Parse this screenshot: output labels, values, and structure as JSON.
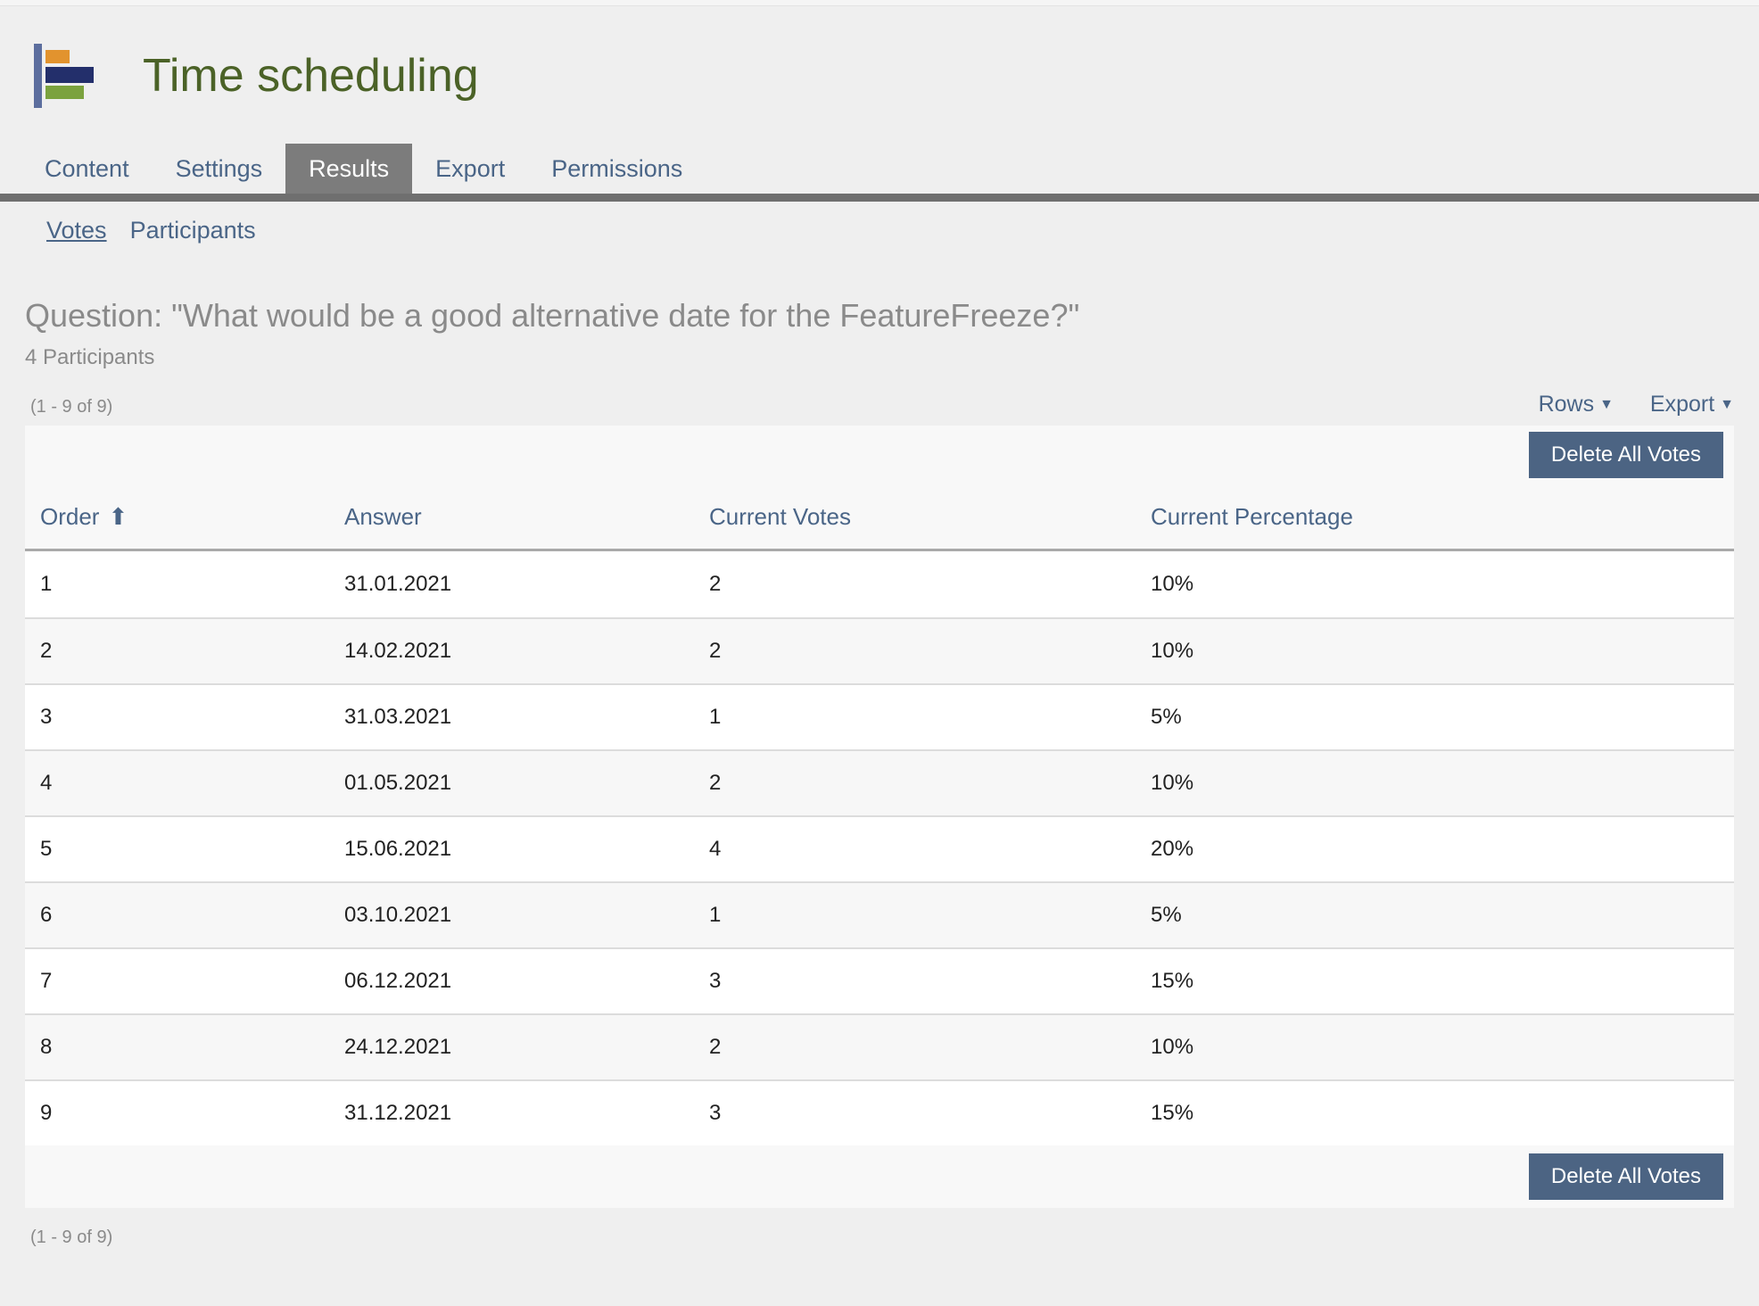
{
  "app": {
    "title": "Time scheduling"
  },
  "logo": {
    "icon": "bar-chart-icon",
    "colors": {
      "axis": "#5c6e9e",
      "bar_top": "#e2932e",
      "bar_middle": "#232f6b",
      "bar_bottom": "#7ba23e"
    }
  },
  "tabs": [
    {
      "label": "Content",
      "active": false
    },
    {
      "label": "Settings",
      "active": false
    },
    {
      "label": "Results",
      "active": true
    },
    {
      "label": "Export",
      "active": false
    },
    {
      "label": "Permissions",
      "active": false
    }
  ],
  "subnav": [
    {
      "label": "Votes",
      "active": true
    },
    {
      "label": "Participants",
      "active": false
    }
  ],
  "question": {
    "heading": "Question: \"What would be a good alternative date for the FeatureFreeze?\"",
    "participants": "4 Participants"
  },
  "pagination": {
    "top": "(1 - 9 of 9)",
    "bottom": "(1 - 9 of 9)"
  },
  "controls": {
    "rows_label": "Rows",
    "export_label": "Export",
    "caret_glyph": "▼"
  },
  "table": {
    "delete_button_label": "Delete All Votes",
    "columns": [
      "Order",
      "Answer",
      "Current Votes",
      "Current Percentage"
    ],
    "sort": {
      "column": "Order",
      "direction": "asc",
      "glyph": "⬆"
    },
    "rows": [
      [
        "1",
        "31.01.2021",
        "2",
        "10%"
      ],
      [
        "2",
        "14.02.2021",
        "2",
        "10%"
      ],
      [
        "3",
        "31.03.2021",
        "1",
        "5%"
      ],
      [
        "4",
        "01.05.2021",
        "2",
        "10%"
      ],
      [
        "5",
        "15.06.2021",
        "4",
        "20%"
      ],
      [
        "6",
        "03.10.2021",
        "1",
        "5%"
      ],
      [
        "7",
        "06.12.2021",
        "3",
        "15%"
      ],
      [
        "8",
        "24.12.2021",
        "2",
        "10%"
      ],
      [
        "9",
        "31.12.2021",
        "3",
        "15%"
      ]
    ]
  },
  "colors": {
    "page_background": "#efefef",
    "accent_slate": "#4a6587",
    "button_background": "#4c6483",
    "active_tab_background": "#7c7c7c",
    "tab_bar": "#6f6f6f",
    "title_green": "#4b6227",
    "muted_text": "#8a8a8a",
    "row_alt": "#f7f7f7",
    "table_strip": "#f8f8f8"
  }
}
